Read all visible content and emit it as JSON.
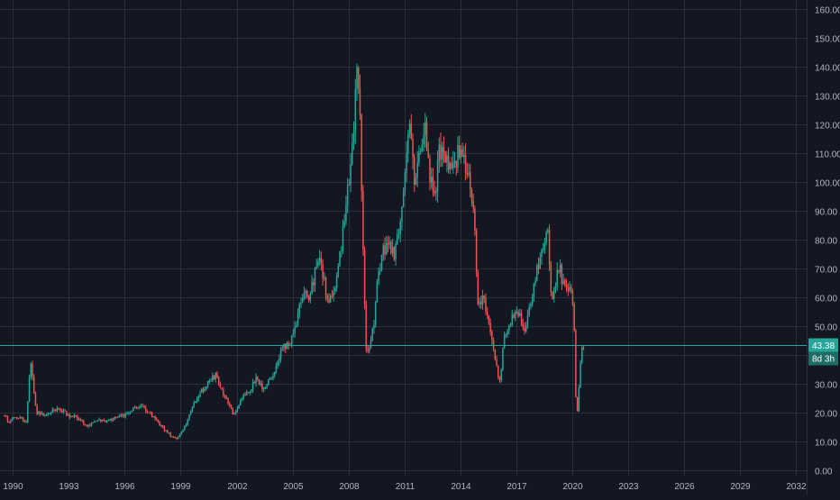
{
  "chart_data": {
    "type": "candlestick",
    "title": "",
    "xlabel": "",
    "ylabel": "",
    "grid": true,
    "legend": "none",
    "xlim": [
      1989.3,
      2032.6
    ],
    "ylim": [
      -2,
      163
    ],
    "x_ticks": [
      "1990",
      "1993",
      "1996",
      "1999",
      "2002",
      "2005",
      "2008",
      "2011",
      "2014",
      "2017",
      "2020",
      "2023",
      "2026",
      "2029",
      "2032"
    ],
    "y_ticks": [
      "0.00",
      "10.00",
      "20.00",
      "30.00",
      "40.00",
      "50.00",
      "60.00",
      "70.00",
      "80.00",
      "90.00",
      "100.00",
      "110.00",
      "120.00",
      "130.00",
      "140.00",
      "150.00",
      "160.00"
    ],
    "price_line": {
      "value": 43.38,
      "label": "43.38",
      "countdown": "8d 3h"
    },
    "colors": {
      "background": "#131722",
      "grid": "#2a2e39",
      "up": "#26a69a",
      "down": "#ef5350",
      "price_line": "#26a69a",
      "text": "#b2b5be"
    },
    "series_path": [
      [
        1989.5,
        19
      ],
      [
        1989.8,
        17
      ],
      [
        1990.2,
        18
      ],
      [
        1990.5,
        17.5
      ],
      [
        1990.75,
        16
      ],
      [
        1990.9,
        30
      ],
      [
        1991.0,
        38
      ],
      [
        1991.15,
        28
      ],
      [
        1991.3,
        20
      ],
      [
        1991.6,
        19
      ],
      [
        1992.0,
        20
      ],
      [
        1992.5,
        21
      ],
      [
        1993.0,
        19
      ],
      [
        1993.5,
        18
      ],
      [
        1994.0,
        15
      ],
      [
        1994.5,
        17
      ],
      [
        1995.0,
        17
      ],
      [
        1995.5,
        18
      ],
      [
        1996.0,
        19
      ],
      [
        1996.5,
        21
      ],
      [
        1997.0,
        22
      ],
      [
        1997.5,
        19
      ],
      [
        1998.0,
        15
      ],
      [
        1998.5,
        12
      ],
      [
        1998.9,
        11
      ],
      [
        1999.2,
        14
      ],
      [
        1999.6,
        21
      ],
      [
        2000.0,
        26
      ],
      [
        2000.5,
        30
      ],
      [
        2000.9,
        33
      ],
      [
        2001.3,
        27
      ],
      [
        2001.9,
        19
      ],
      [
        2002.3,
        25
      ],
      [
        2002.8,
        28
      ],
      [
        2003.1,
        32
      ],
      [
        2003.5,
        28
      ],
      [
        2004.0,
        33
      ],
      [
        2004.5,
        42
      ],
      [
        2004.9,
        44
      ],
      [
        2005.2,
        50
      ],
      [
        2005.6,
        62
      ],
      [
        2005.9,
        58
      ],
      [
        2006.3,
        70
      ],
      [
        2006.6,
        72
      ],
      [
        2006.9,
        58
      ],
      [
        2007.2,
        60
      ],
      [
        2007.6,
        74
      ],
      [
        2007.9,
        92
      ],
      [
        2008.2,
        105
      ],
      [
        2008.45,
        135
      ],
      [
        2008.55,
        140
      ],
      [
        2008.7,
        115
      ],
      [
        2008.85,
        70
      ],
      [
        2009.0,
        42
      ],
      [
        2009.1,
        40
      ],
      [
        2009.4,
        50
      ],
      [
        2009.6,
        68
      ],
      [
        2009.9,
        75
      ],
      [
        2010.2,
        80
      ],
      [
        2010.5,
        75
      ],
      [
        2010.8,
        85
      ],
      [
        2011.0,
        95
      ],
      [
        2011.2,
        110
      ],
      [
        2011.35,
        120
      ],
      [
        2011.6,
        100
      ],
      [
        2011.9,
        110
      ],
      [
        2012.2,
        118
      ],
      [
        2012.45,
        100
      ],
      [
        2012.7,
        95
      ],
      [
        2012.9,
        110
      ],
      [
        2013.2,
        108
      ],
      [
        2013.5,
        103
      ],
      [
        2013.8,
        108
      ],
      [
        2014.0,
        110
      ],
      [
        2014.3,
        107
      ],
      [
        2014.6,
        100
      ],
      [
        2014.8,
        85
      ],
      [
        2015.0,
        58
      ],
      [
        2015.3,
        60
      ],
      [
        2015.6,
        50
      ],
      [
        2015.8,
        45
      ],
      [
        2016.0,
        35
      ],
      [
        2016.15,
        30
      ],
      [
        2016.4,
        45
      ],
      [
        2016.7,
        50
      ],
      [
        2017.0,
        55
      ],
      [
        2017.3,
        53
      ],
      [
        2017.5,
        48
      ],
      [
        2017.8,
        56
      ],
      [
        2018.1,
        67
      ],
      [
        2018.4,
        75
      ],
      [
        2018.75,
        83
      ],
      [
        2018.95,
        58
      ],
      [
        2019.2,
        66
      ],
      [
        2019.4,
        70
      ],
      [
        2019.6,
        63
      ],
      [
        2019.8,
        62
      ],
      [
        2020.0,
        62
      ],
      [
        2020.15,
        52
      ],
      [
        2020.25,
        25
      ],
      [
        2020.35,
        20
      ],
      [
        2020.5,
        38
      ],
      [
        2020.65,
        43.38
      ]
    ]
  }
}
